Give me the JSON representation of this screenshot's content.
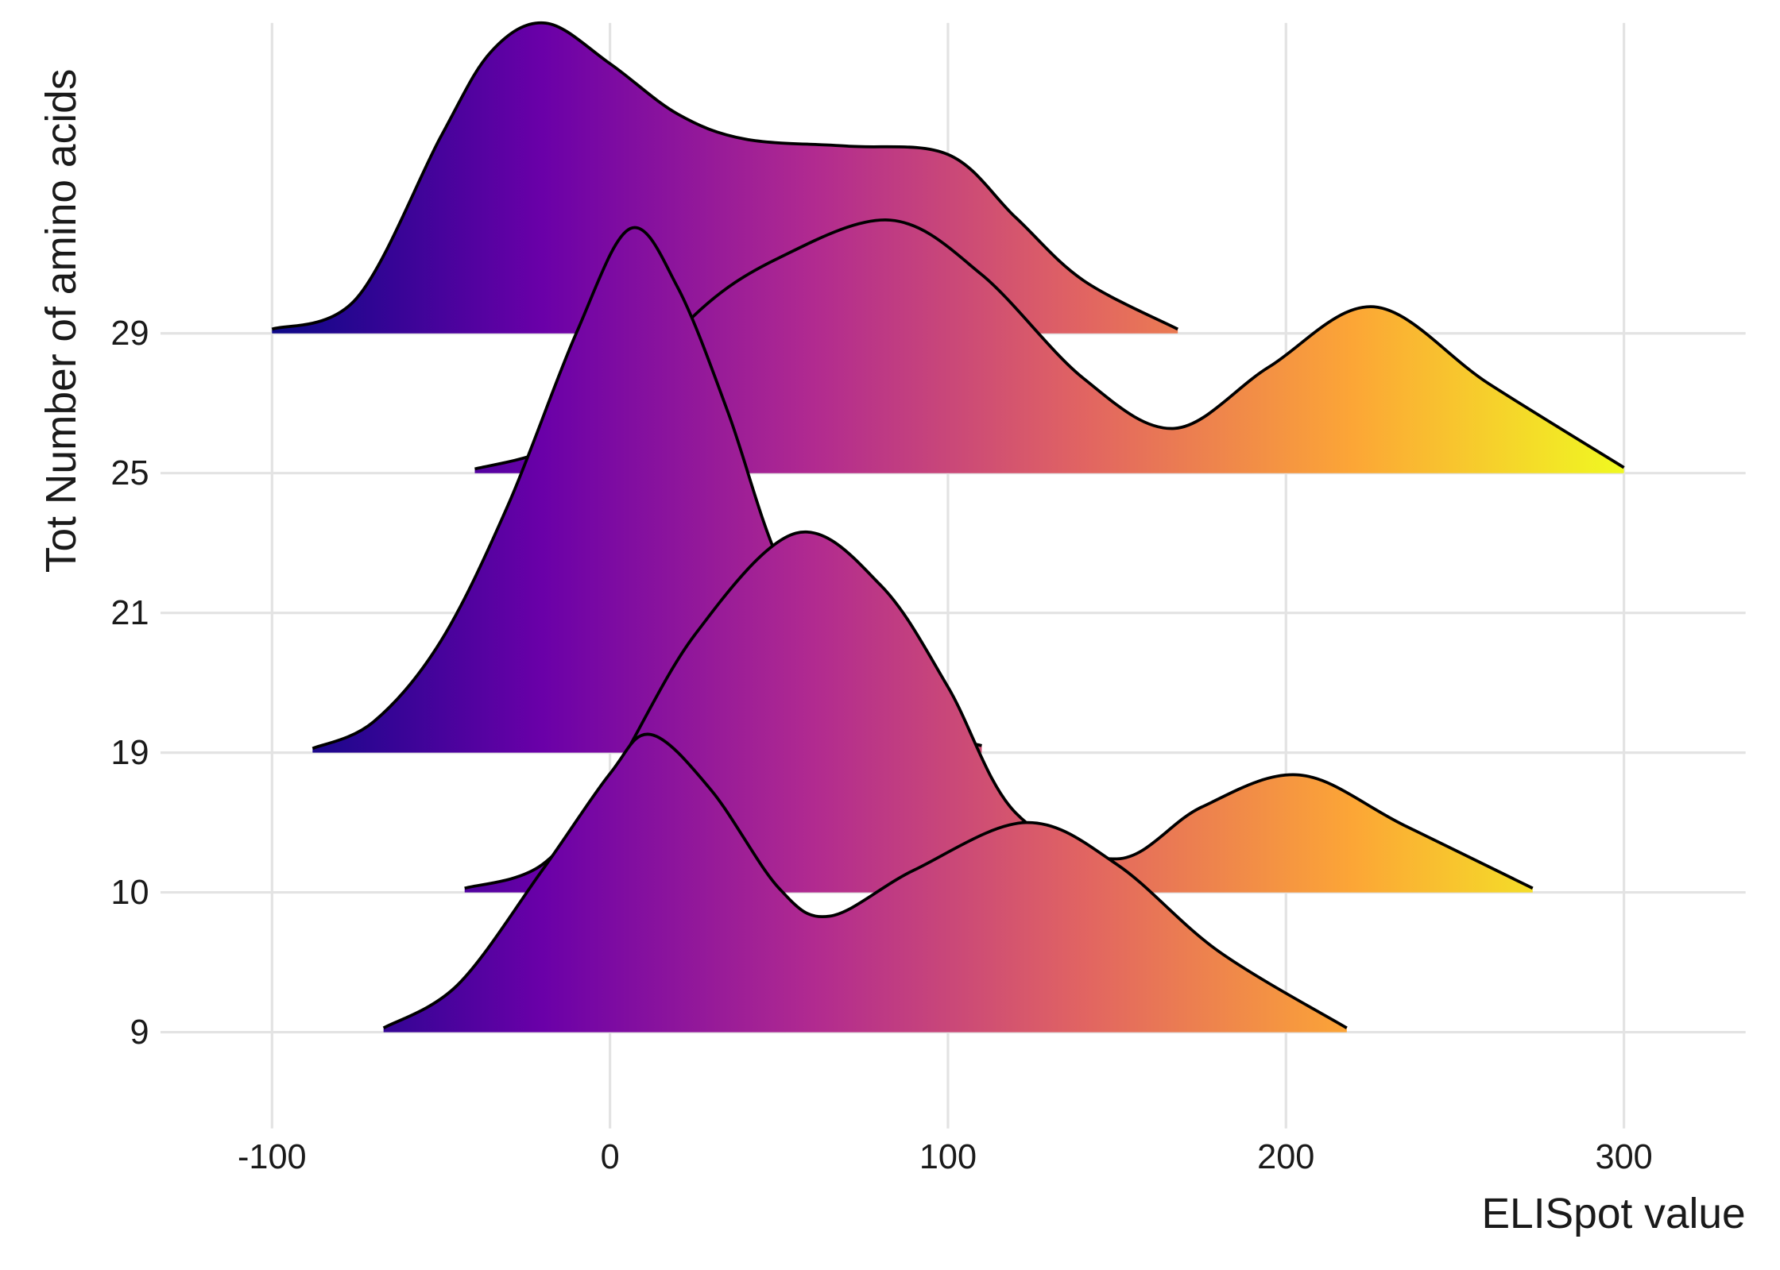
{
  "chart_data": {
    "type": "ridgeline",
    "x_label": "ELISpot value",
    "y_label": "Tot Number of amino acids",
    "xlim": [
      -133,
      336
    ],
    "xticks": [
      -100,
      0,
      100,
      200,
      300
    ],
    "categories": [
      "9",
      "10",
      "19",
      "21",
      "25",
      "29"
    ],
    "grid": true,
    "line_color": "#000000",
    "colormap": [
      "#0d0887",
      "#6a00a8",
      "#b12a90",
      "#e16462",
      "#fca636",
      "#f0f921"
    ],
    "series": [
      {
        "x": [
          -67,
          -45,
          -20,
          0,
          12,
          30,
          50,
          65,
          90,
          123,
          150,
          180,
          218
        ],
        "values": [
          0.03,
          0.34,
          1.16,
          1.85,
          2.13,
          1.73,
          1.03,
          0.83,
          1.16,
          1.5,
          1.2,
          0.58,
          0.03
        ]
      },
      {
        "x": [
          -43,
          -20,
          0,
          25,
          55,
          80,
          100,
          120,
          150,
          175,
          204,
          235,
          273
        ],
        "values": [
          0.03,
          0.2,
          0.81,
          1.84,
          2.57,
          2.2,
          1.47,
          0.57,
          0.24,
          0.61,
          0.84,
          0.48,
          0.03
        ]
      },
      {
        "x": [
          -88,
          -70,
          -50,
          -30,
          -10,
          6,
          20,
          35,
          50,
          70,
          90,
          110
        ],
        "values": [
          0.03,
          0.22,
          0.8,
          1.78,
          3.0,
          3.75,
          3.33,
          2.43,
          1.37,
          0.55,
          0.18,
          0.05
        ]
      },
      {
        "x": [],
        "values": []
      },
      {
        "x": [
          -40,
          -20,
          0,
          25,
          50,
          83,
          110,
          140,
          167,
          195,
          226,
          260,
          300
        ],
        "values": [
          0.03,
          0.15,
          0.4,
          1.13,
          1.54,
          1.81,
          1.42,
          0.68,
          0.32,
          0.76,
          1.19,
          0.64,
          0.04
        ]
      },
      {
        "x": [
          -100,
          -75,
          -50,
          -35,
          -19,
          0,
          20,
          40,
          70,
          100,
          120,
          140,
          168
        ],
        "values": [
          0.03,
          0.25,
          1.41,
          2.02,
          2.22,
          1.93,
          1.57,
          1.39,
          1.34,
          1.28,
          0.83,
          0.38,
          0.03
        ]
      }
    ]
  }
}
